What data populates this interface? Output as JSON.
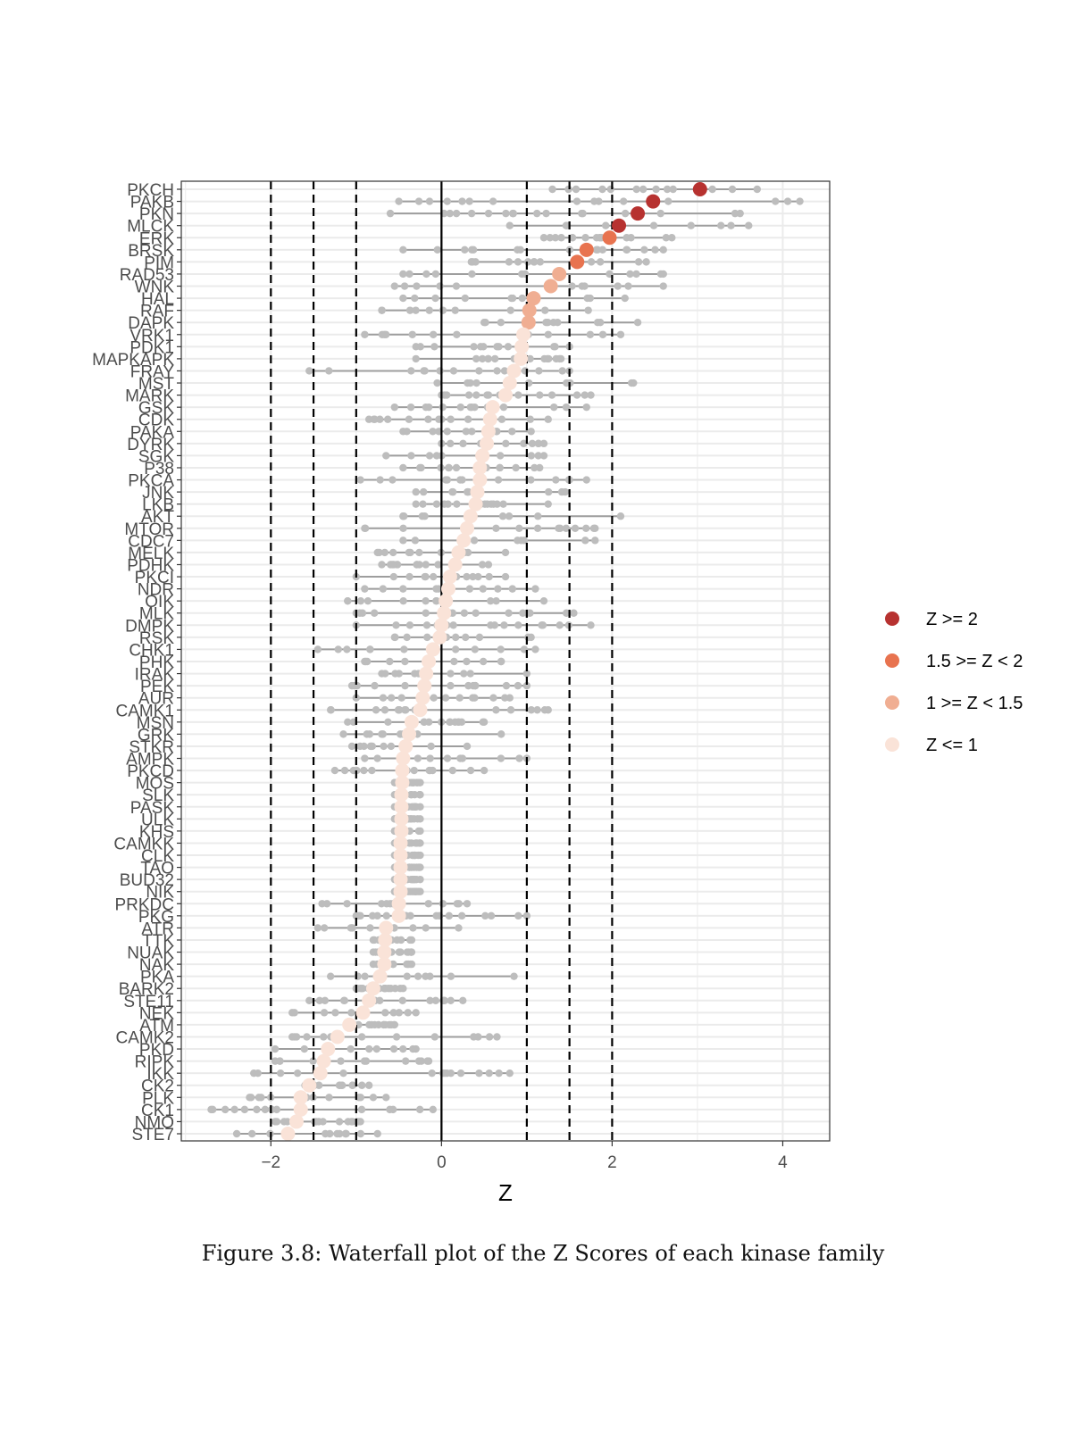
{
  "chart_data": {
    "type": "scatter",
    "subtype": "waterfall",
    "xlabel": "Z",
    "ylabel": "",
    "xlim": [
      -3.05,
      4.55
    ],
    "xticks": [
      -2,
      0,
      2,
      4
    ],
    "xtick_labels": [
      "−2",
      "0",
      "2",
      "4"
    ],
    "vlines_solid": [
      0
    ],
    "vlines_dashed": [
      -2,
      -1.5,
      -1,
      1,
      1.5,
      2
    ],
    "grid": true,
    "legend_position": "right",
    "categories": [
      "PKCH",
      "PAKB",
      "PKN",
      "MLCK",
      "ERK",
      "BRSK",
      "PIM",
      "RAD53",
      "WNK",
      "HAL",
      "RAF",
      "DAPK",
      "VRK1",
      "PDK1",
      "MAPKAPK",
      "FRAY",
      "MST",
      "MARK",
      "GSK",
      "CDK",
      "PAKA",
      "DYRK",
      "SGK",
      "P38",
      "PKCA",
      "JNK",
      "LKB",
      "AKT",
      "MTOR",
      "CDC7",
      "MELK",
      "PDHK",
      "PKCI",
      "NDR",
      "OIK",
      "MLK",
      "DMPK",
      "RSK",
      "CHK1",
      "PHK",
      "IRAK",
      "PEK",
      "AUR",
      "CAMK1",
      "MSN",
      "GRK",
      "STKR",
      "AMPK",
      "PKCD",
      "MOS",
      "SLK",
      "PASK",
      "ULK",
      "KHS",
      "CAMKK",
      "CLK",
      "TAO",
      "BUD32",
      "NIK",
      "PRKDC",
      "PKG",
      "ATR",
      "TTK",
      "NUAK",
      "NAK",
      "PKA",
      "BARK2",
      "STE11",
      "NEK",
      "ATM",
      "CAMK2",
      "PKD",
      "RIPK",
      "IKK",
      "CK2",
      "PLK",
      "CK1",
      "NMO",
      "STE7"
    ],
    "z": [
      3.03,
      2.48,
      2.3,
      2.08,
      1.97,
      1.7,
      1.59,
      1.38,
      1.28,
      1.08,
      1.03,
      1.02,
      0.96,
      0.94,
      0.93,
      0.85,
      0.8,
      0.75,
      0.6,
      0.57,
      0.55,
      0.53,
      0.48,
      0.45,
      0.45,
      0.42,
      0.4,
      0.34,
      0.3,
      0.26,
      0.2,
      0.16,
      0.1,
      0.08,
      0.05,
      0.03,
      0.0,
      -0.02,
      -0.1,
      -0.15,
      -0.18,
      -0.2,
      -0.22,
      -0.25,
      -0.35,
      -0.38,
      -0.42,
      -0.45,
      -0.46,
      -0.46,
      -0.47,
      -0.47,
      -0.47,
      -0.47,
      -0.48,
      -0.48,
      -0.48,
      -0.48,
      -0.48,
      -0.5,
      -0.5,
      -0.65,
      -0.66,
      -0.67,
      -0.67,
      -0.72,
      -0.8,
      -0.85,
      -0.92,
      -1.08,
      -1.22,
      -1.33,
      -1.38,
      -1.42,
      -1.55,
      -1.65,
      -1.65,
      -1.7,
      -1.8
    ],
    "ranges": [
      [
        1.3,
        3.7
      ],
      [
        -0.5,
        4.2
      ],
      [
        -0.6,
        3.5
      ],
      [
        0.8,
        3.6
      ],
      [
        1.2,
        2.7
      ],
      [
        -0.45,
        2.6
      ],
      [
        0.35,
        2.4
      ],
      [
        -0.45,
        2.6
      ],
      [
        -0.55,
        2.6
      ],
      [
        -0.45,
        2.15
      ],
      [
        -0.7,
        1.72
      ],
      [
        0.5,
        2.3
      ],
      [
        -0.9,
        2.1
      ],
      [
        -0.3,
        1.5
      ],
      [
        -0.3,
        1.4
      ],
      [
        -1.55,
        1.5
      ],
      [
        -0.05,
        2.25
      ],
      [
        0.0,
        1.75
      ],
      [
        -0.55,
        1.7
      ],
      [
        -0.85,
        1.25
      ],
      [
        -0.45,
        1.05
      ],
      [
        0.0,
        1.2
      ],
      [
        -0.65,
        1.2
      ],
      [
        -0.45,
        1.15
      ],
      [
        -0.95,
        1.7
      ],
      [
        -0.3,
        1.45
      ],
      [
        -0.3,
        1.25
      ],
      [
        -0.45,
        2.1
      ],
      [
        -0.9,
        1.8
      ],
      [
        -0.45,
        1.8
      ],
      [
        -0.75,
        0.75
      ],
      [
        -0.7,
        0.55
      ],
      [
        -1.0,
        0.75
      ],
      [
        -0.9,
        1.1
      ],
      [
        -1.1,
        1.2
      ],
      [
        -1.0,
        1.55
      ],
      [
        -1.0,
        1.75
      ],
      [
        -0.55,
        1.05
      ],
      [
        -1.45,
        1.1
      ],
      [
        -0.9,
        0.7
      ],
      [
        -0.7,
        1.0
      ],
      [
        -1.05,
        1.0
      ],
      [
        -1.0,
        0.8
      ],
      [
        -1.3,
        1.25
      ],
      [
        -1.1,
        0.5
      ],
      [
        -1.15,
        0.7
      ],
      [
        -1.05,
        0.3
      ],
      [
        -0.9,
        1.0
      ],
      [
        -1.25,
        0.5
      ],
      [
        -0.55,
        -0.25
      ],
      [
        -0.55,
        -0.25
      ],
      [
        -0.55,
        -0.25
      ],
      [
        -0.55,
        -0.25
      ],
      [
        -0.55,
        -0.25
      ],
      [
        -0.55,
        -0.25
      ],
      [
        -0.55,
        -0.25
      ],
      [
        -0.55,
        -0.25
      ],
      [
        -0.55,
        -0.25
      ],
      [
        -0.55,
        -0.25
      ],
      [
        -1.4,
        0.3
      ],
      [
        -1.0,
        1.0
      ],
      [
        -1.45,
        0.2
      ],
      [
        -0.8,
        -0.35
      ],
      [
        -0.8,
        -0.35
      ],
      [
        -0.8,
        -0.35
      ],
      [
        -1.3,
        0.85
      ],
      [
        -1.0,
        -0.45
      ],
      [
        -1.55,
        0.25
      ],
      [
        -1.75,
        -0.3
      ],
      [
        -1.1,
        -0.55
      ],
      [
        -1.75,
        0.65
      ],
      [
        -1.95,
        -0.3
      ],
      [
        -1.95,
        -0.15
      ],
      [
        -2.2,
        0.8
      ],
      [
        -1.6,
        -0.85
      ],
      [
        -2.25,
        -0.65
      ],
      [
        -2.7,
        -0.1
      ],
      [
        -1.95,
        -0.95
      ],
      [
        -2.4,
        -0.75
      ]
    ],
    "legend": [
      {
        "label": "Z >= 2",
        "color": "#b73230"
      },
      {
        "label": "1.5 >= Z < 2",
        "color": "#e8734f"
      },
      {
        "label": "1 >= Z < 1.5",
        "color": "#f0ae92"
      },
      {
        "label": "Z <= 1",
        "color": "#fae3d8"
      }
    ],
    "range_color": "#bdbdbd",
    "range_line_color": "#9e9e9e"
  },
  "caption": "Figure 3.8: Waterfall plot of the Z Scores of each kinase family"
}
